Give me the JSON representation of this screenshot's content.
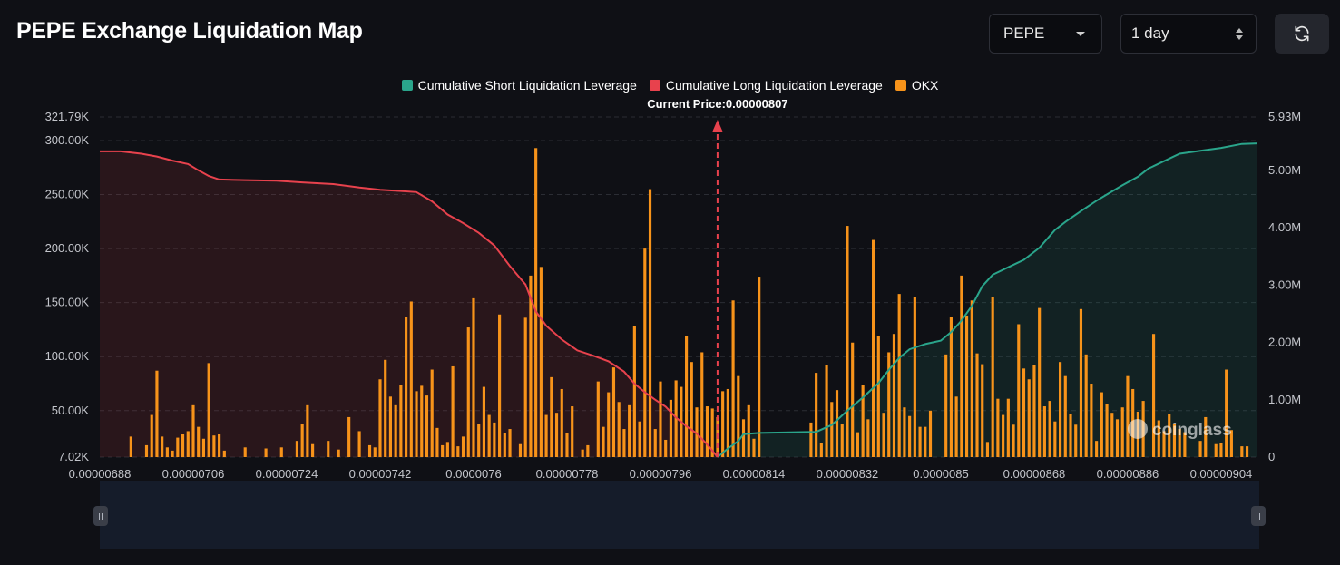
{
  "header": {
    "title": "PEPE Exchange Liquidation Map",
    "coin_select": "PEPE",
    "range_select": "1 day"
  },
  "icons": {
    "refresh": "refresh-icon",
    "coin_caret": "chevron-down-icon",
    "range_caret": "up-down-icon",
    "watermark": "coinglass-logo"
  },
  "watermark": "coinglass",
  "colors": {
    "background": "#0f1015",
    "short": "#2aa58b",
    "long": "#e8424d",
    "okx": "#f7931a",
    "grid": "#2b2d34"
  },
  "chart_data": {
    "type": "bar",
    "legend": [
      {
        "name": "Cumulative Short Liquidation Leverage",
        "color": "#2aa58b"
      },
      {
        "name": "Cumulative Long Liquidation Leverage",
        "color": "#e8424d"
      },
      {
        "name": "OKX",
        "color": "#f7931a"
      }
    ],
    "legend_position": "top-center",
    "current_price_label": "Current Price:0.00000807",
    "current_price": 8.07e-06,
    "x_ticks": [
      "0.00000688",
      "0.00000706",
      "0.00000724",
      "0.00000742",
      "0.0000076",
      "0.00000778",
      "0.00000796",
      "0.00000814",
      "0.00000832",
      "0.0000085",
      "0.00000868",
      "0.00000886",
      "0.00000904"
    ],
    "x_range": [
      6.88e-06,
      9.11e-06
    ],
    "y_left_ticks": [
      "7.02K",
      "50.00K",
      "100.00K",
      "150.00K",
      "200.00K",
      "250.00K",
      "300.00K",
      "321.79K"
    ],
    "y_left_range": [
      7020,
      321790
    ],
    "y_right_ticks": [
      "0",
      "1.00M",
      "2.00M",
      "3.00M",
      "4.00M",
      "5.00M",
      "5.93M"
    ],
    "y_right_range": [
      0,
      5930000
    ],
    "grid": true,
    "okx_bars": [
      [
        6.94e-06,
        26000
      ],
      [
        6.97e-06,
        18000
      ],
      [
        6.98e-06,
        46000
      ],
      [
        6.99e-06,
        87000
      ],
      [
        7e-06,
        26000
      ],
      [
        7.01e-06,
        16000
      ],
      [
        7.02e-06,
        13000
      ],
      [
        7.03e-06,
        25000
      ],
      [
        7.04e-06,
        28000
      ],
      [
        7.05e-06,
        31000
      ],
      [
        7.06e-06,
        55000
      ],
      [
        7.07e-06,
        35000
      ],
      [
        7.08e-06,
        24000
      ],
      [
        7.09e-06,
        94000
      ],
      [
        7.1e-06,
        27000
      ],
      [
        7.11e-06,
        28000
      ],
      [
        7.12e-06,
        13000
      ],
      [
        7.16e-06,
        16000
      ],
      [
        7.2e-06,
        15000
      ],
      [
        7.23e-06,
        16000
      ],
      [
        7.26e-06,
        22000
      ],
      [
        7.27e-06,
        38000
      ],
      [
        7.28e-06,
        55000
      ],
      [
        7.29e-06,
        19000
      ],
      [
        7.32e-06,
        22000
      ],
      [
        7.34e-06,
        14000
      ],
      [
        7.36e-06,
        44000
      ],
      [
        7.38e-06,
        31000
      ],
      [
        7.4e-06,
        18000
      ],
      [
        7.41e-06,
        16000
      ],
      [
        7.42e-06,
        79000
      ],
      [
        7.43e-06,
        97000
      ],
      [
        7.44e-06,
        63000
      ],
      [
        7.45e-06,
        55000
      ],
      [
        7.46e-06,
        74000
      ],
      [
        7.47e-06,
        137000
      ],
      [
        7.48e-06,
        151000
      ],
      [
        7.49e-06,
        68000
      ],
      [
        7.5e-06,
        73000
      ],
      [
        7.51e-06,
        64000
      ],
      [
        7.52e-06,
        88000
      ],
      [
        7.53e-06,
        34000
      ],
      [
        7.54e-06,
        18000
      ],
      [
        7.55e-06,
        21000
      ],
      [
        7.56e-06,
        91000
      ],
      [
        7.57e-06,
        17000
      ],
      [
        7.58e-06,
        26000
      ],
      [
        7.59e-06,
        127000
      ],
      [
        7.6e-06,
        154000
      ],
      [
        7.61e-06,
        38000
      ],
      [
        7.62e-06,
        72000
      ],
      [
        7.63e-06,
        46000
      ],
      [
        7.64e-06,
        39000
      ],
      [
        7.65e-06,
        139000
      ],
      [
        7.66e-06,
        29000
      ],
      [
        7.67e-06,
        33000
      ],
      [
        7.69e-06,
        19000
      ],
      [
        7.7e-06,
        136000
      ],
      [
        7.71e-06,
        175000
      ],
      [
        7.72e-06,
        293000
      ],
      [
        7.73e-06,
        183000
      ],
      [
        7.74e-06,
        46000
      ],
      [
        7.75e-06,
        81000
      ],
      [
        7.76e-06,
        48000
      ],
      [
        7.77e-06,
        70000
      ],
      [
        7.78e-06,
        29000
      ],
      [
        7.79e-06,
        54000
      ],
      [
        7.81e-06,
        14000
      ],
      [
        7.82e-06,
        18000
      ],
      [
        7.84e-06,
        77000
      ],
      [
        7.85e-06,
        35000
      ],
      [
        7.86e-06,
        67000
      ],
      [
        7.87e-06,
        90000
      ],
      [
        7.88e-06,
        58000
      ],
      [
        7.89e-06,
        33000
      ],
      [
        7.9e-06,
        55000
      ],
      [
        7.91e-06,
        128000
      ],
      [
        7.92e-06,
        40000
      ],
      [
        7.93e-06,
        200000
      ],
      [
        7.94e-06,
        255000
      ],
      [
        7.95e-06,
        33000
      ],
      [
        7.96e-06,
        77000
      ],
      [
        7.97e-06,
        23000
      ],
      [
        7.98e-06,
        60000
      ],
      [
        7.99e-06,
        78000
      ],
      [
        8e-06,
        72000
      ],
      [
        8.01e-06,
        119000
      ],
      [
        8.02e-06,
        95000
      ],
      [
        8.03e-06,
        53000
      ],
      [
        8.04e-06,
        104000
      ],
      [
        8.05e-06,
        54000
      ],
      [
        8.06e-06,
        52000
      ],
      [
        8.07e-06,
        44000
      ],
      [
        8.08e-06,
        68000
      ],
      [
        8.09e-06,
        70000
      ],
      [
        8.1e-06,
        152000
      ],
      [
        8.11e-06,
        82000
      ],
      [
        8.12e-06,
        42000
      ],
      [
        8.13e-06,
        55000
      ],
      [
        8.14e-06,
        24000
      ],
      [
        8.15e-06,
        174000
      ],
      [
        8.25e-06,
        39000
      ],
      [
        8.26e-06,
        85000
      ],
      [
        8.27e-06,
        20000
      ],
      [
        8.28e-06,
        92000
      ],
      [
        8.29e-06,
        58000
      ],
      [
        8.3e-06,
        69000
      ],
      [
        8.31e-06,
        38000
      ],
      [
        8.32e-06,
        221000
      ],
      [
        8.33e-06,
        113000
      ],
      [
        8.34e-06,
        30000
      ],
      [
        8.35e-06,
        74000
      ],
      [
        8.36e-06,
        42000
      ],
      [
        8.37e-06,
        208000
      ],
      [
        8.38e-06,
        119000
      ],
      [
        8.39e-06,
        48000
      ],
      [
        8.4e-06,
        104000
      ],
      [
        8.41e-06,
        121000
      ],
      [
        8.42e-06,
        158000
      ],
      [
        8.43e-06,
        53000
      ],
      [
        8.44e-06,
        45000
      ],
      [
        8.45e-06,
        155000
      ],
      [
        8.46e-06,
        35000
      ],
      [
        8.47e-06,
        35000
      ],
      [
        8.48e-06,
        50000
      ],
      [
        8.51e-06,
        102000
      ],
      [
        8.52e-06,
        137000
      ],
      [
        8.53e-06,
        63000
      ],
      [
        8.54e-06,
        175000
      ],
      [
        8.55e-06,
        138000
      ],
      [
        8.56e-06,
        152000
      ],
      [
        8.57e-06,
        103000
      ],
      [
        8.58e-06,
        93000
      ],
      [
        8.59e-06,
        21000
      ],
      [
        8.6e-06,
        155000
      ],
      [
        8.61e-06,
        61000
      ],
      [
        8.62e-06,
        46000
      ],
      [
        8.63e-06,
        61000
      ],
      [
        8.64e-06,
        37000
      ],
      [
        8.65e-06,
        130000
      ],
      [
        8.66e-06,
        89000
      ],
      [
        8.67e-06,
        79000
      ],
      [
        8.68e-06,
        92000
      ],
      [
        8.69e-06,
        145000
      ],
      [
        8.7e-06,
        54000
      ],
      [
        8.71e-06,
        59000
      ],
      [
        8.72e-06,
        40000
      ],
      [
        8.73e-06,
        95000
      ],
      [
        8.74e-06,
        82000
      ],
      [
        8.75e-06,
        47000
      ],
      [
        8.76e-06,
        37000
      ],
      [
        8.77e-06,
        144000
      ],
      [
        8.78e-06,
        102000
      ],
      [
        8.79e-06,
        75000
      ],
      [
        8.8e-06,
        22000
      ],
      [
        8.81e-06,
        67000
      ],
      [
        8.82e-06,
        56000
      ],
      [
        8.83e-06,
        48000
      ],
      [
        8.84e-06,
        42000
      ],
      [
        8.85e-06,
        53000
      ],
      [
        8.86e-06,
        82000
      ],
      [
        8.87e-06,
        70000
      ],
      [
        8.88e-06,
        49000
      ],
      [
        8.89e-06,
        59000
      ],
      [
        8.91e-06,
        121000
      ],
      [
        8.92e-06,
        41000
      ],
      [
        8.93e-06,
        31000
      ],
      [
        8.94e-06,
        47000
      ],
      [
        8.95e-06,
        38000
      ],
      [
        8.96e-06,
        33000
      ],
      [
        8.97e-06,
        30000
      ],
      [
        9e-06,
        22000
      ],
      [
        9.01e-06,
        44000
      ],
      [
        9.03e-06,
        19000
      ],
      [
        9.04e-06,
        20000
      ],
      [
        9.05e-06,
        88000
      ],
      [
        9.06e-06,
        32000
      ],
      [
        9.08e-06,
        17000
      ],
      [
        9.09e-06,
        17000
      ]
    ],
    "cumulative_long": [
      [
        6.88e-06,
        5330000
      ],
      [
        6.92e-06,
        5330000
      ],
      [
        6.96e-06,
        5290000
      ],
      [
        6.99e-06,
        5240000
      ],
      [
        7.02e-06,
        5170000
      ],
      [
        7.05e-06,
        5110000
      ],
      [
        7.07e-06,
        5000000
      ],
      [
        7.09e-06,
        4900000
      ],
      [
        7.11e-06,
        4840000
      ],
      [
        7.16e-06,
        4830000
      ],
      [
        7.22e-06,
        4820000
      ],
      [
        7.27e-06,
        4790000
      ],
      [
        7.33e-06,
        4760000
      ],
      [
        7.38e-06,
        4700000
      ],
      [
        7.42e-06,
        4660000
      ],
      [
        7.46e-06,
        4640000
      ],
      [
        7.49e-06,
        4620000
      ],
      [
        7.52e-06,
        4460000
      ],
      [
        7.55e-06,
        4230000
      ],
      [
        7.58e-06,
        4080000
      ],
      [
        7.61e-06,
        3910000
      ],
      [
        7.64e-06,
        3690000
      ],
      [
        7.67e-06,
        3330000
      ],
      [
        7.7e-06,
        3010000
      ],
      [
        7.72e-06,
        2540000
      ],
      [
        7.74e-06,
        2290000
      ],
      [
        7.77e-06,
        2050000
      ],
      [
        7.8e-06,
        1860000
      ],
      [
        7.83e-06,
        1770000
      ],
      [
        7.86e-06,
        1670000
      ],
      [
        7.89e-06,
        1490000
      ],
      [
        7.91e-06,
        1280000
      ],
      [
        7.93e-06,
        1130000
      ],
      [
        7.95e-06,
        1000000
      ],
      [
        7.97e-06,
        880000
      ],
      [
        7.99e-06,
        690000
      ],
      [
        8.01e-06,
        540000
      ],
      [
        8.03e-06,
        410000
      ],
      [
        8.05e-06,
        220000
      ],
      [
        8.07e-06,
        0
      ]
    ],
    "cumulative_short": [
      [
        8.07e-06,
        0
      ],
      [
        8.09e-06,
        150000
      ],
      [
        8.11e-06,
        280000
      ],
      [
        8.12e-06,
        400000
      ],
      [
        8.15e-06,
        420000
      ],
      [
        8.21e-06,
        430000
      ],
      [
        8.26e-06,
        440000
      ],
      [
        8.29e-06,
        560000
      ],
      [
        8.32e-06,
        810000
      ],
      [
        8.35e-06,
        1040000
      ],
      [
        8.38e-06,
        1290000
      ],
      [
        8.4e-06,
        1520000
      ],
      [
        8.42e-06,
        1730000
      ],
      [
        8.44e-06,
        1880000
      ],
      [
        8.47e-06,
        1970000
      ],
      [
        8.5e-06,
        2030000
      ],
      [
        8.52e-06,
        2180000
      ],
      [
        8.54e-06,
        2380000
      ],
      [
        8.56e-06,
        2640000
      ],
      [
        8.58e-06,
        2980000
      ],
      [
        8.6e-06,
        3180000
      ],
      [
        8.63e-06,
        3310000
      ],
      [
        8.66e-06,
        3440000
      ],
      [
        8.69e-06,
        3650000
      ],
      [
        8.72e-06,
        3960000
      ],
      [
        8.74e-06,
        4100000
      ],
      [
        8.77e-06,
        4290000
      ],
      [
        8.8e-06,
        4470000
      ],
      [
        8.82e-06,
        4580000
      ],
      [
        8.85e-06,
        4740000
      ],
      [
        8.88e-06,
        4890000
      ],
      [
        8.9e-06,
        5030000
      ],
      [
        8.93e-06,
        5160000
      ],
      [
        8.96e-06,
        5290000
      ],
      [
        9e-06,
        5340000
      ],
      [
        9.04e-06,
        5390000
      ],
      [
        9.08e-06,
        5460000
      ],
      [
        9.11e-06,
        5470000
      ]
    ]
  }
}
